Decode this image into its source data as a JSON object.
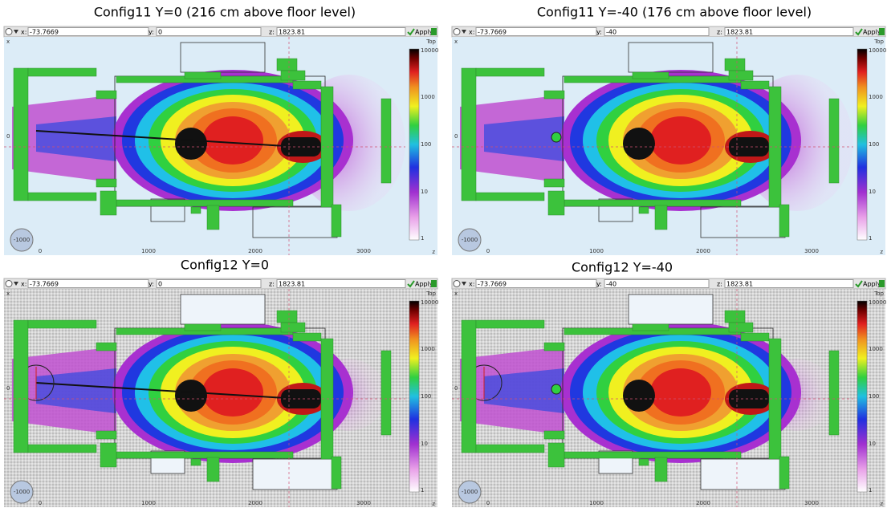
{
  "panels": [
    {
      "title": "Config11    Y=0   (216 cm above floor level)",
      "toolbar": {
        "x_label": "x:",
        "x": "-73.7669",
        "y_label": "y:",
        "y": "0",
        "z_label": "z:",
        "z": "1823.81",
        "apply": "Apply"
      },
      "view": "Top",
      "vertical_axis": "x",
      "horizontal_axis": "z",
      "horizontal_ticks": [
        "0",
        "1000",
        "2000",
        "3000"
      ],
      "vertical_ticks": [
        "0"
      ],
      "colorbar_ticks": [
        "10000",
        "1000",
        "100",
        "10",
        "1"
      ],
      "gizmo": "-1000"
    },
    {
      "title": "Config11    Y=-40   (176 cm above floor level)",
      "toolbar": {
        "x_label": "x:",
        "x": "-73.7669",
        "y_label": "y:",
        "y": "-40",
        "z_label": "z:",
        "z": "1823.81",
        "apply": "Apply"
      },
      "view": "Top",
      "vertical_axis": "x",
      "horizontal_axis": "z",
      "horizontal_ticks": [
        "0",
        "1000",
        "2000",
        "3000"
      ],
      "vertical_ticks": [
        "0"
      ],
      "colorbar_ticks": [
        "10000",
        "1000",
        "100",
        "10",
        "1"
      ],
      "gizmo": "-1000"
    },
    {
      "title": "Config12    Y=0",
      "toolbar": {
        "x_label": "x:",
        "x": "-73.7669",
        "y_label": "y:",
        "y": "0",
        "z_label": "z:",
        "z": "1823.81",
        "apply": "Apply"
      },
      "view": "Top",
      "vertical_axis": "x",
      "horizontal_axis": "z",
      "horizontal_ticks": [
        "0",
        "1000",
        "2000",
        "3000"
      ],
      "vertical_ticks": [
        "0"
      ],
      "colorbar_ticks": [
        "10000",
        "1000",
        "100",
        "10",
        "1"
      ],
      "gizmo": "-1000"
    },
    {
      "title": "Config12    Y=-40",
      "toolbar": {
        "x_label": "x:",
        "x": "-73.7669",
        "y_label": "y:",
        "y": "-40",
        "z_label": "z:",
        "z": "1823.81",
        "apply": "Apply"
      },
      "view": "Top",
      "vertical_axis": "x",
      "horizontal_axis": "z",
      "horizontal_ticks": [
        "0",
        "1000",
        "2000",
        "3000"
      ],
      "vertical_ticks": [
        "0"
      ],
      "colorbar_ticks": [
        "10000",
        "1000",
        "100",
        "10",
        "1"
      ],
      "gizmo": "-1000"
    }
  ]
}
